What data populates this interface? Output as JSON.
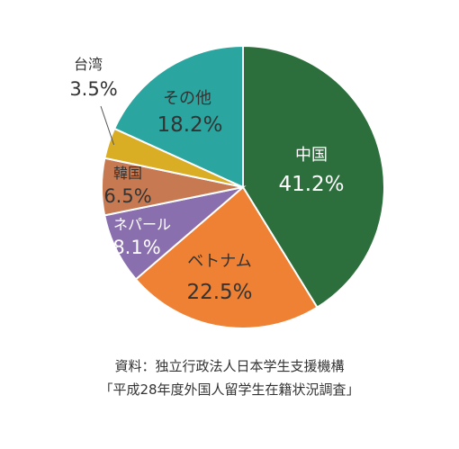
{
  "chart_data": {
    "type": "pie",
    "start": "12 o'clock",
    "direction": "clockwise",
    "slices": [
      {
        "label": "中国",
        "value": 41.2,
        "display": "41.2%",
        "color": "#2d6f3c",
        "label_color": "#ffffff"
      },
      {
        "label": "ベトナム",
        "value": 22.5,
        "display": "22.5%",
        "color": "#ee8133",
        "label_color": "#333333"
      },
      {
        "label": "ネパール",
        "value": 8.1,
        "display": "8.1%",
        "color": "#8a6fae",
        "label_color": "#ffffff"
      },
      {
        "label": "韓国",
        "value": 6.5,
        "display": "6.5%",
        "color": "#c77a51",
        "label_color": "#333333"
      },
      {
        "label": "台湾",
        "value": 3.5,
        "display": "3.5%",
        "color": "#d9ad24",
        "label_color": "#333333"
      },
      {
        "label": "その他",
        "value": 18.2,
        "display": "18.2%",
        "color": "#2aa59f",
        "label_color": "#333333"
      }
    ]
  },
  "source": {
    "line1": "資料：独立行政法人日本学生支援機構",
    "line2": "「平成28年度外国人留学生在籍状況調査」"
  }
}
